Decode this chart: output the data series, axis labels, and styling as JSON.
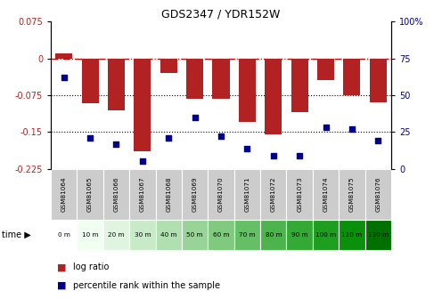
{
  "title": "GDS2347 / YDR152W",
  "samples": [
    "GSM81064",
    "GSM81065",
    "GSM81066",
    "GSM81067",
    "GSM81068",
    "GSM81069",
    "GSM81070",
    "GSM81071",
    "GSM81072",
    "GSM81073",
    "GSM81074",
    "GSM81075",
    "GSM81076"
  ],
  "time_labels": [
    "0 m",
    "10 m",
    "20 m",
    "30 m",
    "40 m",
    "50 m",
    "60 m",
    "70 m",
    "80 m",
    "90 m",
    "100 m",
    "110 m",
    "120 m"
  ],
  "log_ratio": [
    0.01,
    -0.092,
    -0.105,
    -0.19,
    -0.03,
    -0.082,
    -0.083,
    -0.13,
    -0.155,
    -0.11,
    -0.045,
    -0.075,
    -0.09
  ],
  "percentile": [
    62,
    21,
    17,
    5,
    21,
    35,
    22,
    14,
    9,
    9,
    28,
    27,
    19
  ],
  "bar_color": "#b22222",
  "dot_color": "#00008b",
  "ylim_left": [
    -0.225,
    0.075
  ],
  "ylim_right": [
    0,
    100
  ],
  "yticks_left": [
    0.075,
    0,
    -0.075,
    -0.15,
    -0.225
  ],
  "yticks_right": [
    100,
    75,
    50,
    25,
    0
  ],
  "hline_zero_color": "#cc0000",
  "hline_dotted_color": "black",
  "bar_width": 0.65,
  "sample_box_color": "#cccccc",
  "legend_bar_color": "#b22222",
  "legend_dot_color": "#00008b",
  "time_colors": [
    "#ffffff",
    "#f0fff0",
    "#e0f5e0",
    "#c8eac8",
    "#b0dfb0",
    "#98d498",
    "#80ca80",
    "#65bf65",
    "#4db44d",
    "#35a935",
    "#1e9e1e",
    "#0a900a",
    "#007000"
  ]
}
